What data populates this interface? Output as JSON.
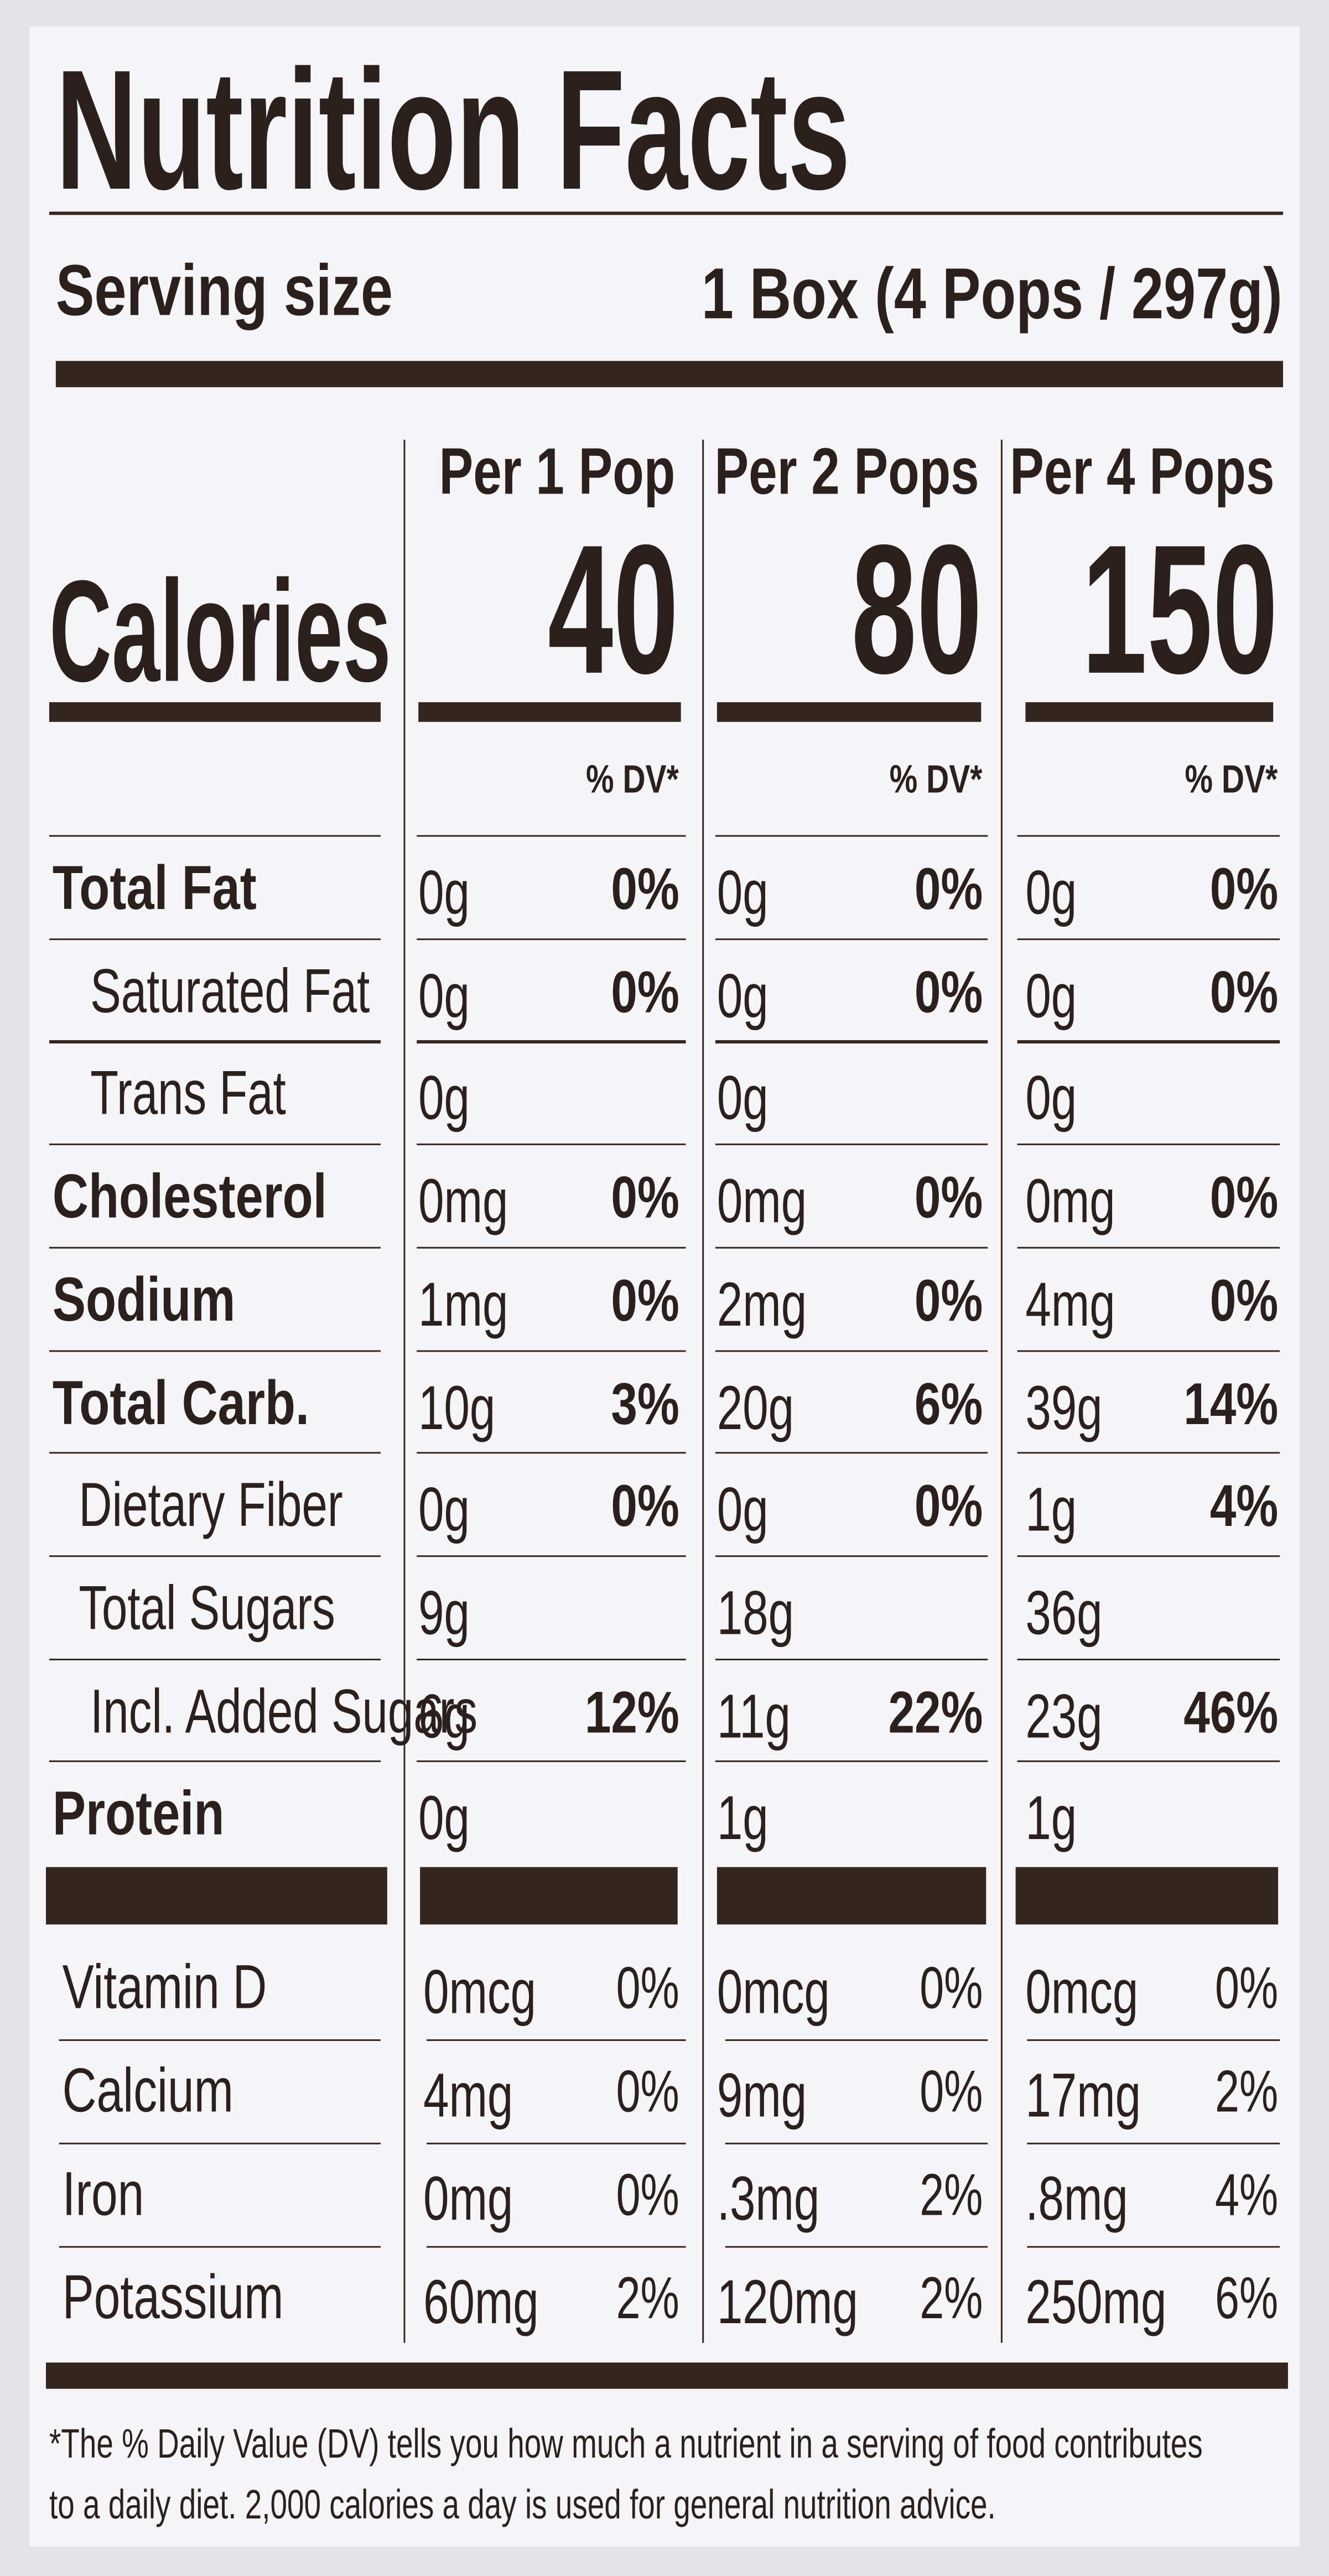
{
  "header": {
    "title": "Nutrition Facts",
    "serving_size_label": "Serving size",
    "serving_size": "1 Box (4 Pops / 297g)"
  },
  "columns": [
    "Per 1 Pop",
    "Per 2 Pops",
    "Per 4 Pops"
  ],
  "calories": {
    "label": "Calories",
    "values": [
      40,
      80,
      150
    ]
  },
  "dv_header": "% DV*",
  "nutrients": [
    {
      "name": "Total Fat",
      "bold": true,
      "level": 0,
      "values": [
        {
          "amount": "0g",
          "dv": "0%"
        },
        {
          "amount": "0g",
          "dv": "0%"
        },
        {
          "amount": "0g",
          "dv": "0%"
        }
      ]
    },
    {
      "name": "Saturated Fat",
      "bold": false,
      "level": 2,
      "values": [
        {
          "amount": "0g",
          "dv": "0%"
        },
        {
          "amount": "0g",
          "dv": "0%"
        },
        {
          "amount": "0g",
          "dv": "0%"
        }
      ]
    },
    {
      "name": "Trans Fat",
      "bold": false,
      "level": 2,
      "values": [
        {
          "amount": "0g"
        },
        {
          "amount": "0g"
        },
        {
          "amount": "0g"
        }
      ]
    },
    {
      "name": "Cholesterol",
      "bold": true,
      "level": 0,
      "values": [
        {
          "amount": "0mg",
          "dv": "0%"
        },
        {
          "amount": "0mg",
          "dv": "0%"
        },
        {
          "amount": "0mg",
          "dv": "0%"
        }
      ]
    },
    {
      "name": "Sodium",
      "bold": true,
      "level": 0,
      "values": [
        {
          "amount": "1mg",
          "dv": "0%"
        },
        {
          "amount": "2mg",
          "dv": "0%"
        },
        {
          "amount": "4mg",
          "dv": "0%"
        }
      ]
    },
    {
      "name": "Total Carb.",
      "bold": true,
      "level": 0,
      "values": [
        {
          "amount": "10g",
          "dv": "3%"
        },
        {
          "amount": "20g",
          "dv": "6%"
        },
        {
          "amount": "39g",
          "dv": "14%"
        }
      ]
    },
    {
      "name": "Dietary Fiber",
      "bold": false,
      "level": 1,
      "values": [
        {
          "amount": "0g",
          "dv": "0%"
        },
        {
          "amount": "0g",
          "dv": "0%"
        },
        {
          "amount": "1g",
          "dv": "4%"
        }
      ]
    },
    {
      "name": "Total Sugars",
      "bold": false,
      "level": 1,
      "values": [
        {
          "amount": "9g"
        },
        {
          "amount": "18g"
        },
        {
          "amount": "36g"
        }
      ]
    },
    {
      "name": "Incl. Added Sugars",
      "bold": false,
      "level": 2,
      "values": [
        {
          "amount": "6g",
          "dv": "12%"
        },
        {
          "amount": "11g",
          "dv": "22%"
        },
        {
          "amount": "23g",
          "dv": "46%"
        }
      ]
    },
    {
      "name": "Protein",
      "bold": true,
      "level": 0,
      "values": [
        {
          "amount": "0g"
        },
        {
          "amount": "1g"
        },
        {
          "amount": "1g"
        }
      ]
    }
  ],
  "vitamins": [
    {
      "name": "Vitamin D",
      "values": [
        {
          "amount": "0mcg",
          "dv": "0%"
        },
        {
          "amount": "0mcg",
          "dv": "0%"
        },
        {
          "amount": "0mcg",
          "dv": "0%"
        }
      ]
    },
    {
      "name": "Calcium",
      "values": [
        {
          "amount": "4mg",
          "dv": "0%"
        },
        {
          "amount": "9mg",
          "dv": "0%"
        },
        {
          "amount": "17mg",
          "dv": "2%"
        }
      ]
    },
    {
      "name": "Iron",
      "values": [
        {
          "amount": "0mg",
          "dv": "0%"
        },
        {
          "amount": ".3mg",
          "dv": "2%"
        },
        {
          "amount": ".8mg",
          "dv": "4%"
        }
      ]
    },
    {
      "name": "Potassium",
      "values": [
        {
          "amount": "60mg",
          "dv": "2%"
        },
        {
          "amount": "120mg",
          "dv": "2%"
        },
        {
          "amount": "250mg",
          "dv": "6%"
        }
      ]
    }
  ],
  "footnote": [
    "*The % Daily Value (DV) tells you how much a nutrient in a serving of food contributes",
    "to a daily diet. 2,000 calories a day is used for general nutrition advice."
  ]
}
